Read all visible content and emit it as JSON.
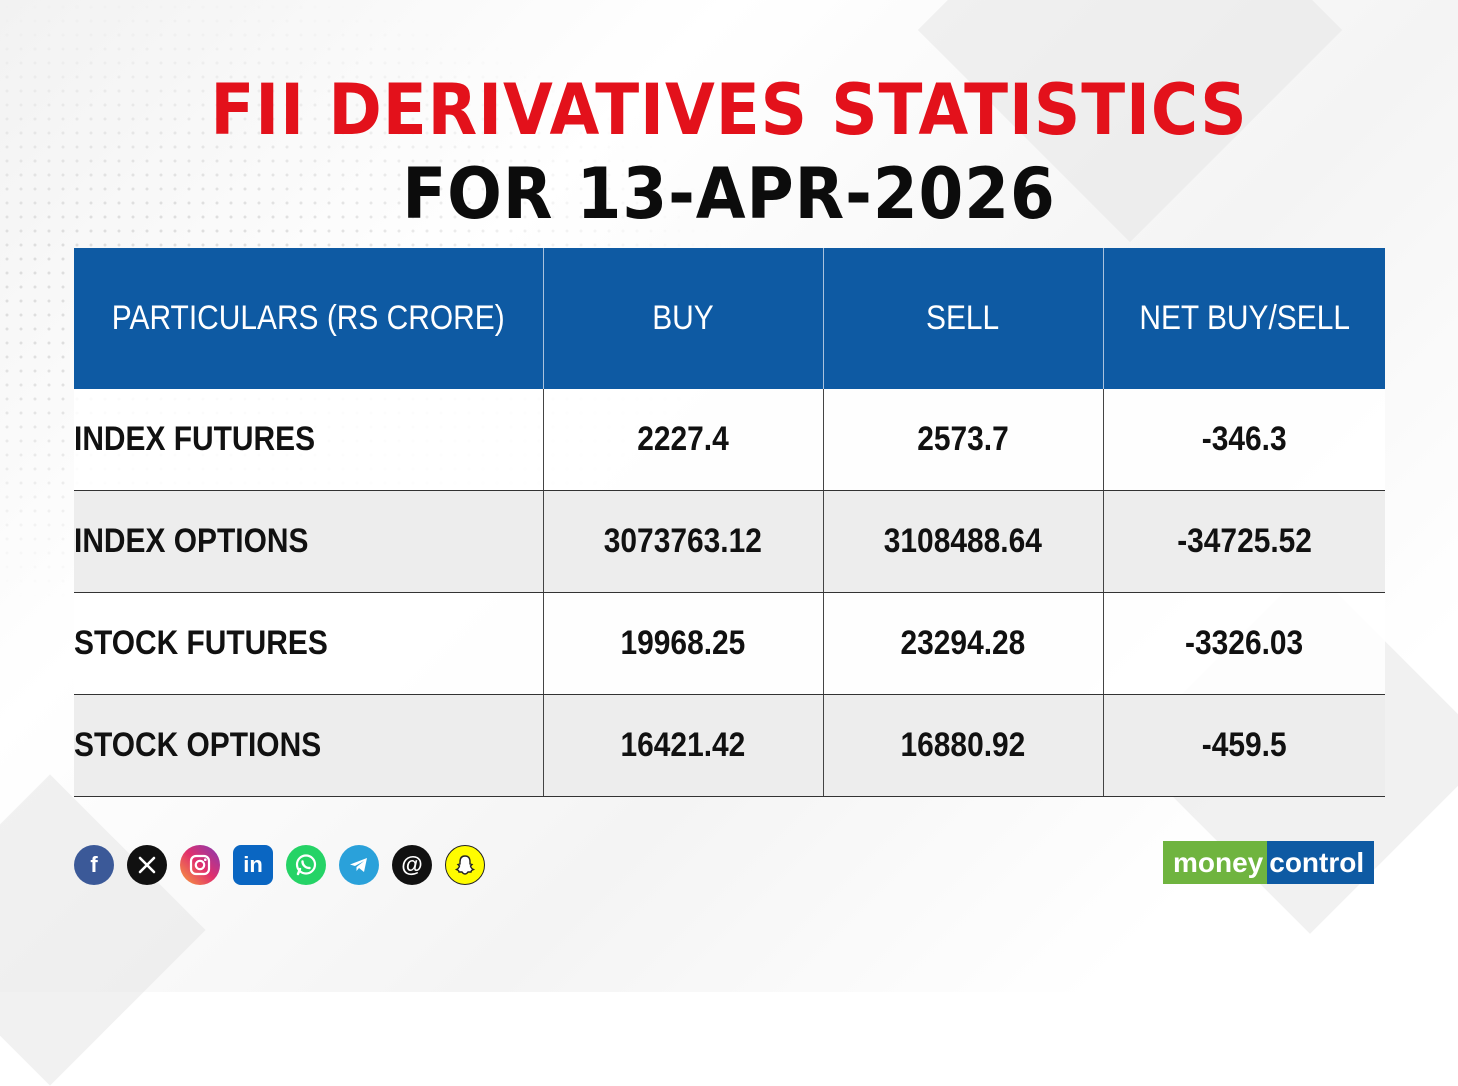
{
  "title": {
    "line1": "FII DERIVATIVES STATISTICS",
    "line2": "FOR 13-APR-2026"
  },
  "colors": {
    "title_red": "#e3111b",
    "header_blue": "#0e5aa3",
    "logo_green": "#6fb43f"
  },
  "chart_data": {
    "type": "table",
    "title": "FII DERIVATIVES STATISTICS FOR 13-APR-2026",
    "columns": [
      "PARTICULARS (RS CRORE)",
      "BUY",
      "SELL",
      "NET BUY/SELL"
    ],
    "rows": [
      [
        "INDEX FUTURES",
        "2227.4",
        "2573.7",
        "-346.3"
      ],
      [
        "INDEX OPTIONS",
        "3073763.12",
        "3108488.64",
        "-34725.52"
      ],
      [
        "STOCK FUTURES",
        "19968.25",
        "23294.28",
        "-3326.03"
      ],
      [
        "STOCK OPTIONS",
        "16421.42",
        "16880.92",
        "-459.5"
      ]
    ]
  },
  "social_icons": [
    {
      "name": "facebook-icon",
      "glyph": "f",
      "color": "#3b5998"
    },
    {
      "name": "x-icon",
      "glyph": "𝕏",
      "color": "#111111"
    },
    {
      "name": "instagram-icon",
      "glyph": "",
      "color": "#d6249f"
    },
    {
      "name": "linkedin-icon",
      "glyph": "in",
      "color": "#0a66c2"
    },
    {
      "name": "whatsapp-icon",
      "glyph": "",
      "color": "#25d366"
    },
    {
      "name": "telegram-icon",
      "glyph": "",
      "color": "#2aa1da"
    },
    {
      "name": "threads-icon",
      "glyph": "@",
      "color": "#111111"
    },
    {
      "name": "snapchat-icon",
      "glyph": "",
      "color": "#fffc00"
    }
  ],
  "logo": {
    "money": "money",
    "control": "control"
  }
}
